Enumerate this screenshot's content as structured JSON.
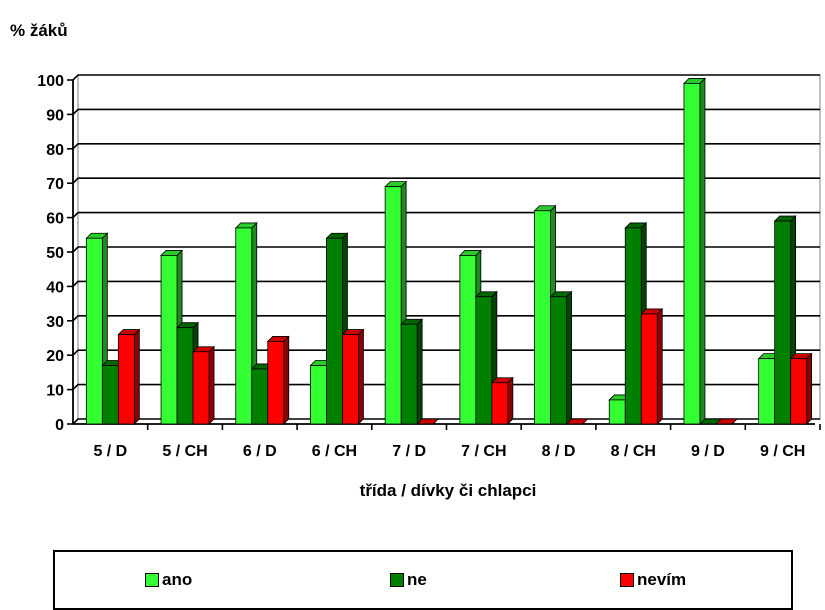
{
  "chart_data": {
    "type": "bar",
    "ylabel": "% žáků",
    "xlabel": "třída / dívky či chlapci",
    "ylim": [
      0,
      100
    ],
    "yticks": [
      "0",
      "10",
      "20",
      "30",
      "40",
      "50",
      "60",
      "70",
      "80",
      "90",
      "100"
    ],
    "categories": [
      "5 / D",
      "5 / CH",
      "6 / D",
      "6 / CH",
      "7 / D",
      "7 / CH",
      "8 / D",
      "8 / CH",
      "9 / D",
      "9 / CH"
    ],
    "series": [
      {
        "name": "ano",
        "color": "#33ff33",
        "values": [
          54,
          49,
          57,
          17,
          69,
          49,
          62,
          7,
          99,
          19
        ]
      },
      {
        "name": "ne",
        "color": "#008000",
        "values": [
          17,
          28,
          16,
          54,
          29,
          37,
          37,
          57,
          0,
          59
        ]
      },
      {
        "name": "nevím",
        "color": "#ff0000",
        "values": [
          26,
          21,
          24,
          26,
          0,
          12,
          0,
          32,
          0,
          19
        ]
      }
    ],
    "grid": true,
    "legend_position": "bottom"
  }
}
